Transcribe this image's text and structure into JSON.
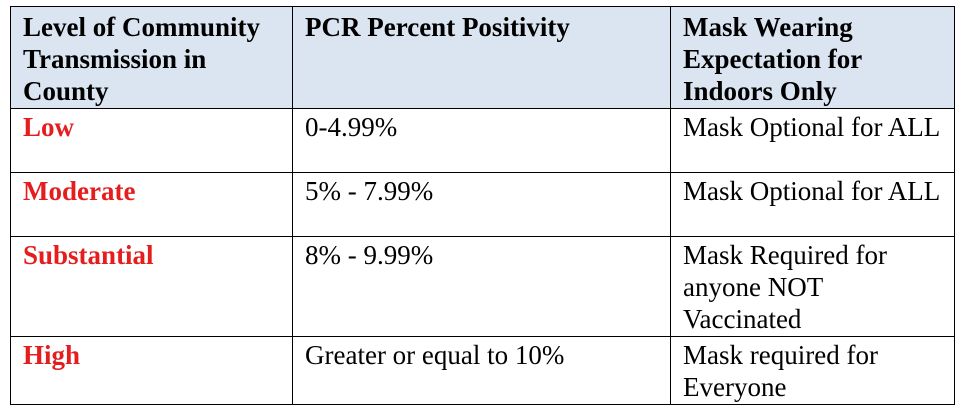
{
  "table": {
    "headers": [
      "Level of Community Transmission in County",
      "PCR Percent Positivity",
      "Mask Wearing Expectation for Indoors Only"
    ],
    "rows": [
      {
        "level": "Low",
        "positivity": "0-4.99%",
        "expectation": "Mask Optional for ALL"
      },
      {
        "level": "Moderate",
        "positivity": "5% - 7.99%",
        "expectation": "Mask Optional for ALL"
      },
      {
        "level": "Substantial",
        "positivity": "8% - 9.99%",
        "expectation": "Mask Required for anyone NOT Vaccinated"
      },
      {
        "level": "High",
        "positivity": "Greater or equal to 10%",
        "expectation": "Mask required for Everyone"
      }
    ]
  },
  "colors": {
    "header_background": "#dbe5f1",
    "level_text": "#e41e1e",
    "border": "#000000"
  }
}
